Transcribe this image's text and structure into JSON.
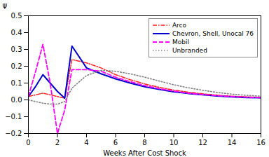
{
  "chart_data": {
    "type": "line",
    "xlabel": "Weeks After Cost Shock",
    "ylabel": "ψ",
    "xlim": [
      0,
      16
    ],
    "ylim": [
      -0.2,
      0.5
    ],
    "xticks": [
      0,
      2,
      4,
      6,
      8,
      10,
      12,
      14,
      16
    ],
    "yticks": [
      -0.2,
      -0.1,
      {
        "value": 0.0,
        "label": "0.0"
      },
      0.1,
      0.2,
      0.3,
      0.4,
      0.5
    ],
    "legend": "upper right",
    "series": [
      {
        "name": "Arco",
        "color": "#ff2020",
        "line_style": "dashdot",
        "x": [
          0,
          0.5,
          1,
          2,
          2.5,
          3,
          4,
          5,
          6,
          7,
          8,
          9,
          10,
          11,
          12,
          13,
          14,
          15,
          16
        ],
        "values": [
          0.02,
          0.03,
          0.04,
          0.02,
          0.01,
          0.24,
          0.22,
          0.19,
          0.15,
          0.12,
          0.095,
          0.075,
          0.058,
          0.046,
          0.036,
          0.028,
          0.022,
          0.018,
          0.015
        ]
      },
      {
        "name": "Chevron, Shell, Unocal 76",
        "color": "#0000cc",
        "line_style": "solid",
        "x": [
          0,
          0.5,
          1,
          2,
          2.5,
          3,
          4,
          5,
          6,
          7,
          8,
          9,
          10,
          11,
          12,
          13,
          14,
          15,
          16
        ],
        "values": [
          0.02,
          0.08,
          0.15,
          0.05,
          0.01,
          0.32,
          0.19,
          0.155,
          0.125,
          0.1,
          0.078,
          0.062,
          0.048,
          0.038,
          0.03,
          0.023,
          0.018,
          0.014,
          0.012
        ]
      },
      {
        "name": "Mobil",
        "color": "#ff00ff",
        "line_style": "dashed",
        "x": [
          0,
          0.5,
          1,
          1.5,
          2,
          2.5,
          3,
          4,
          5,
          6,
          7,
          8,
          9,
          10,
          11,
          12,
          13,
          14,
          15,
          16
        ],
        "values": [
          0.02,
          0.17,
          0.33,
          0.1,
          -0.2,
          -0.06,
          0.18,
          0.18,
          0.17,
          0.135,
          0.108,
          0.085,
          0.067,
          0.052,
          0.04,
          0.032,
          0.025,
          0.02,
          0.016,
          0.013
        ]
      },
      {
        "name": "Unbranded",
        "color": "#808080",
        "line_style": "dotted",
        "x": [
          0,
          0.5,
          1,
          1.5,
          2,
          2.5,
          3,
          4,
          5,
          6,
          7,
          8,
          9,
          10,
          11,
          12,
          13,
          14,
          15,
          16
        ],
        "values": [
          0.0,
          -0.01,
          -0.02,
          -0.025,
          -0.025,
          -0.01,
          0.07,
          0.145,
          0.175,
          0.17,
          0.155,
          0.135,
          0.112,
          0.09,
          0.072,
          0.057,
          0.044,
          0.034,
          0.027,
          0.022
        ]
      }
    ]
  }
}
